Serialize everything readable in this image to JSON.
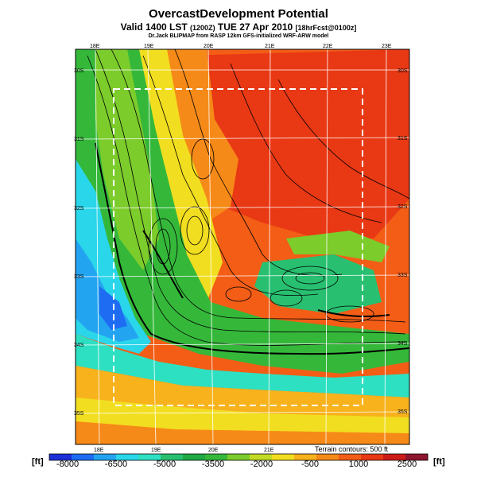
{
  "header": {
    "title": "OvercastDevelopment Potential",
    "subtitle_main": "Valid 1400 LST",
    "subtitle_small": "(1200Z)",
    "subtitle_date": "TUE 27 Apr 2010",
    "subtitle_forecast": "[18hrFcst@0100z]",
    "credit": "Dr.Jack BLIPMAP from RASP 12km GFS-initialized WRF-ARW model"
  },
  "map": {
    "longitude_labels_top": [
      "18E",
      "19E",
      "20E",
      "21E",
      "22E",
      "23E"
    ],
    "longitude_labels_bottom": [
      "18E",
      "19E",
      "20E",
      "21E"
    ],
    "latitude_labels_left": [
      "30S",
      "31S",
      "32S",
      "33S",
      "34S",
      "35S"
    ],
    "latitude_labels_right": [
      "30S",
      "31S",
      "32S",
      "33S",
      "34S",
      "35S"
    ]
  },
  "colorbar": {
    "unit_left": "[ft]",
    "unit_right": "[ft]",
    "tick_labels": [
      "-8000",
      "-6500",
      "-5000",
      "-3500",
      "-2000",
      "-500",
      "1000",
      "2500"
    ],
    "colors": [
      "#1e2fd8",
      "#1e6cf2",
      "#23a4f0",
      "#2ad6ea",
      "#2ee0c2",
      "#28c070",
      "#1fa843",
      "#35b83a",
      "#7ccc2c",
      "#c3da25",
      "#f2de20",
      "#f7b21c",
      "#f68a18",
      "#f35d16",
      "#e83814",
      "#cc1c18",
      "#8e1430"
    ],
    "terrain_note": "Terrain contours: 500 ft"
  }
}
